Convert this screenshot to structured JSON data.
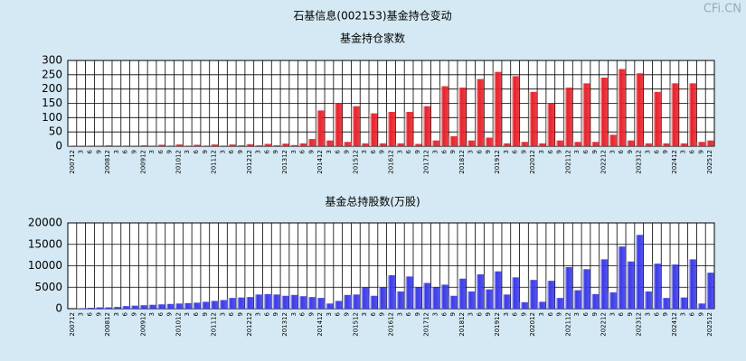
{
  "title": "石基信息(002153)基金持仓变动",
  "watermark": "CFi.CN",
  "chart_data": [
    {
      "type": "bar",
      "title": "基金持仓家数",
      "categories": [
        "200712",
        "3",
        "6",
        "9",
        "200812",
        "3",
        "6",
        "9",
        "200912",
        "3",
        "6",
        "9",
        "201012",
        "3",
        "6",
        "9",
        "201112",
        "3",
        "6",
        "9",
        "201212",
        "3",
        "6",
        "9",
        "201312",
        "3",
        "6",
        "9",
        "201412",
        "3",
        "6",
        "9",
        "201512",
        "3",
        "6",
        "9",
        "201612",
        "3",
        "6",
        "9",
        "201712",
        "3",
        "6",
        "9",
        "201812",
        "3",
        "6",
        "9",
        "201912",
        "3",
        "6",
        "9",
        "202012",
        "3",
        "6",
        "9",
        "202112",
        "3",
        "6",
        "9",
        "202212",
        "3",
        "6",
        "9",
        "202312",
        "3",
        "6",
        "9",
        "202412",
        "3",
        "6",
        "9",
        "202512"
      ],
      "values": [
        2,
        1,
        2,
        1,
        3,
        1,
        2,
        1,
        3,
        1,
        5,
        2,
        6,
        2,
        5,
        2,
        6,
        2,
        6,
        3,
        7,
        3,
        8,
        3,
        9,
        4,
        10,
        25,
        125,
        20,
        150,
        15,
        140,
        10,
        115,
        10,
        120,
        10,
        120,
        8,
        140,
        20,
        210,
        35,
        205,
        20,
        235,
        30,
        260,
        10,
        245,
        15,
        190,
        10,
        150,
        20,
        205,
        15,
        220,
        15,
        240,
        40,
        270,
        20,
        255,
        10,
        190,
        10,
        220,
        10,
        220,
        15,
        20
      ],
      "color": "#e8212a",
      "ylim": [
        0,
        300
      ],
      "yticks": [
        0,
        50,
        100,
        150,
        200,
        250,
        300
      ],
      "grid": true
    },
    {
      "type": "bar",
      "title": "基金总持股数(万股)",
      "categories": [
        "200712",
        "3",
        "6",
        "9",
        "200812",
        "3",
        "6",
        "9",
        "200912",
        "3",
        "6",
        "9",
        "201012",
        "3",
        "6",
        "9",
        "201112",
        "3",
        "6",
        "9",
        "201212",
        "3",
        "6",
        "9",
        "201312",
        "3",
        "6",
        "9",
        "201412",
        "3",
        "6",
        "9",
        "201512",
        "3",
        "6",
        "9",
        "201612",
        "3",
        "6",
        "9",
        "201712",
        "3",
        "6",
        "9",
        "201812",
        "3",
        "6",
        "9",
        "201912",
        "3",
        "6",
        "9",
        "202012",
        "3",
        "6",
        "9",
        "202112",
        "3",
        "6",
        "9",
        "202212",
        "3",
        "6",
        "9",
        "202312",
        "3",
        "6",
        "9",
        "202412",
        "3",
        "6",
        "9",
        "202512"
      ],
      "values": [
        0,
        100,
        200,
        300,
        300,
        400,
        600,
        700,
        800,
        900,
        1000,
        1100,
        1200,
        1300,
        1400,
        1600,
        1800,
        2000,
        2500,
        2600,
        2700,
        3300,
        3400,
        3300,
        3000,
        3200,
        2900,
        2700,
        2500,
        1200,
        1800,
        3200,
        3300,
        5000,
        3000,
        5000,
        7800,
        4000,
        7500,
        5000,
        6000,
        5000,
        5600,
        3000,
        7000,
        4000,
        8000,
        4500,
        8700,
        3300,
        7300,
        1500,
        6700,
        1600,
        6500,
        2500,
        9700,
        4300,
        9200,
        3400,
        11500,
        3800,
        14500,
        11000,
        17200,
        4000,
        10500,
        2500,
        10300,
        2600,
        11500,
        1200,
        8400
      ],
      "color": "#3a3ae8",
      "ylim": [
        0,
        20000
      ],
      "yticks": [
        0,
        5000,
        10000,
        15000,
        20000
      ],
      "grid": true
    }
  ]
}
